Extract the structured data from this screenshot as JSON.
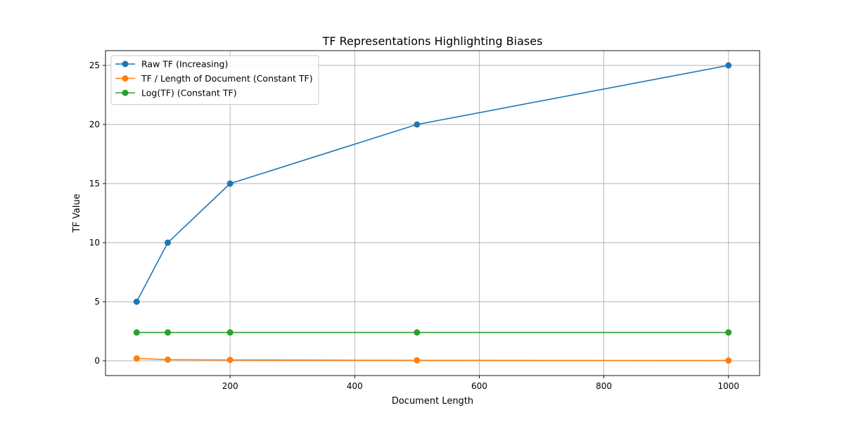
{
  "chart_data": {
    "type": "line",
    "title": "TF Representations Highlighting Biases",
    "xlabel": "Document Length",
    "ylabel": "TF Value",
    "x": [
      50,
      100,
      200,
      500,
      1000
    ],
    "xlim": [
      0,
      1050
    ],
    "ylim": [
      -1.25,
      26.25
    ],
    "xticks": [
      200,
      400,
      600,
      800,
      1000
    ],
    "xtick_labels": [
      "200",
      "400",
      "600",
      "800",
      "1000"
    ],
    "yticks": [
      0,
      5,
      10,
      15,
      20,
      25
    ],
    "ytick_labels": [
      "0",
      "5",
      "10",
      "15",
      "20",
      "25"
    ],
    "grid": true,
    "legend_position": "top-left",
    "series": [
      {
        "name": "Raw TF (Increasing)",
        "color": "#1f77b4",
        "marker": "circle",
        "values": [
          5,
          10,
          15,
          20,
          25
        ]
      },
      {
        "name": "TF / Length of Document (Constant TF)",
        "color": "#ff7f0e",
        "marker": "circle",
        "values": [
          0.2,
          0.1,
          0.075,
          0.04,
          0.025
        ]
      },
      {
        "name": "Log(TF) (Constant TF)",
        "color": "#2ca02c",
        "marker": "circle",
        "values": [
          2.4,
          2.4,
          2.4,
          2.4,
          2.4
        ]
      }
    ]
  }
}
